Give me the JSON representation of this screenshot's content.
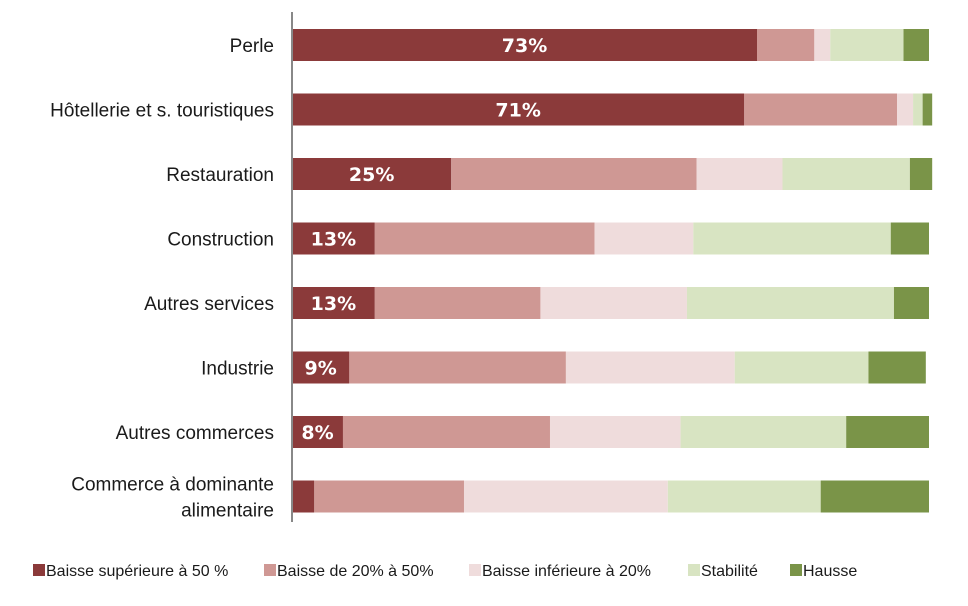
{
  "chart_data": {
    "type": "bar",
    "orientation": "horizontal",
    "stacked": true,
    "normalized": true,
    "title": "",
    "xlabel": "",
    "ylabel": "",
    "xlim": [
      0,
      100
    ],
    "grid": false,
    "legend_position": "bottom",
    "categories": [
      [
        "Perle"
      ],
      [
        "Hôtellerie et s. touristiques"
      ],
      [
        "Restauration"
      ],
      [
        "Construction"
      ],
      [
        "Autres services"
      ],
      [
        "Industrie"
      ],
      [
        "Autres commerces"
      ],
      [
        "Commerce à dominante",
        "alimentaire"
      ]
    ],
    "series": [
      {
        "name": "Baisse supérieure à 50 %",
        "color": "#8b3a3a",
        "values": [
          73,
          71,
          25,
          13,
          13,
          9,
          8,
          3.5
        ],
        "labels": [
          "73%",
          "71%",
          "25%",
          "13%",
          "13%",
          "9%",
          "8%",
          ""
        ]
      },
      {
        "name": "Baisse de 20% à 50%",
        "color": "#cf9894",
        "values": [
          9,
          24,
          38.5,
          34.5,
          26,
          34,
          32.5,
          23.5
        ]
      },
      {
        "name": "Baisse inférieure à 20%",
        "color": "#efdcdc",
        "values": [
          2.5,
          2.5,
          13.5,
          15.5,
          23,
          26.5,
          20.5,
          32
        ]
      },
      {
        "name": "Stabilité",
        "color": "#d8e4c2",
        "values": [
          11.5,
          1.5,
          20,
          31,
          32.5,
          21,
          26,
          24
        ]
      },
      {
        "name": "Hausse",
        "color": "#7a9448",
        "values": [
          4,
          1.5,
          3.5,
          6,
          5.5,
          9,
          13,
          17
        ]
      }
    ]
  }
}
